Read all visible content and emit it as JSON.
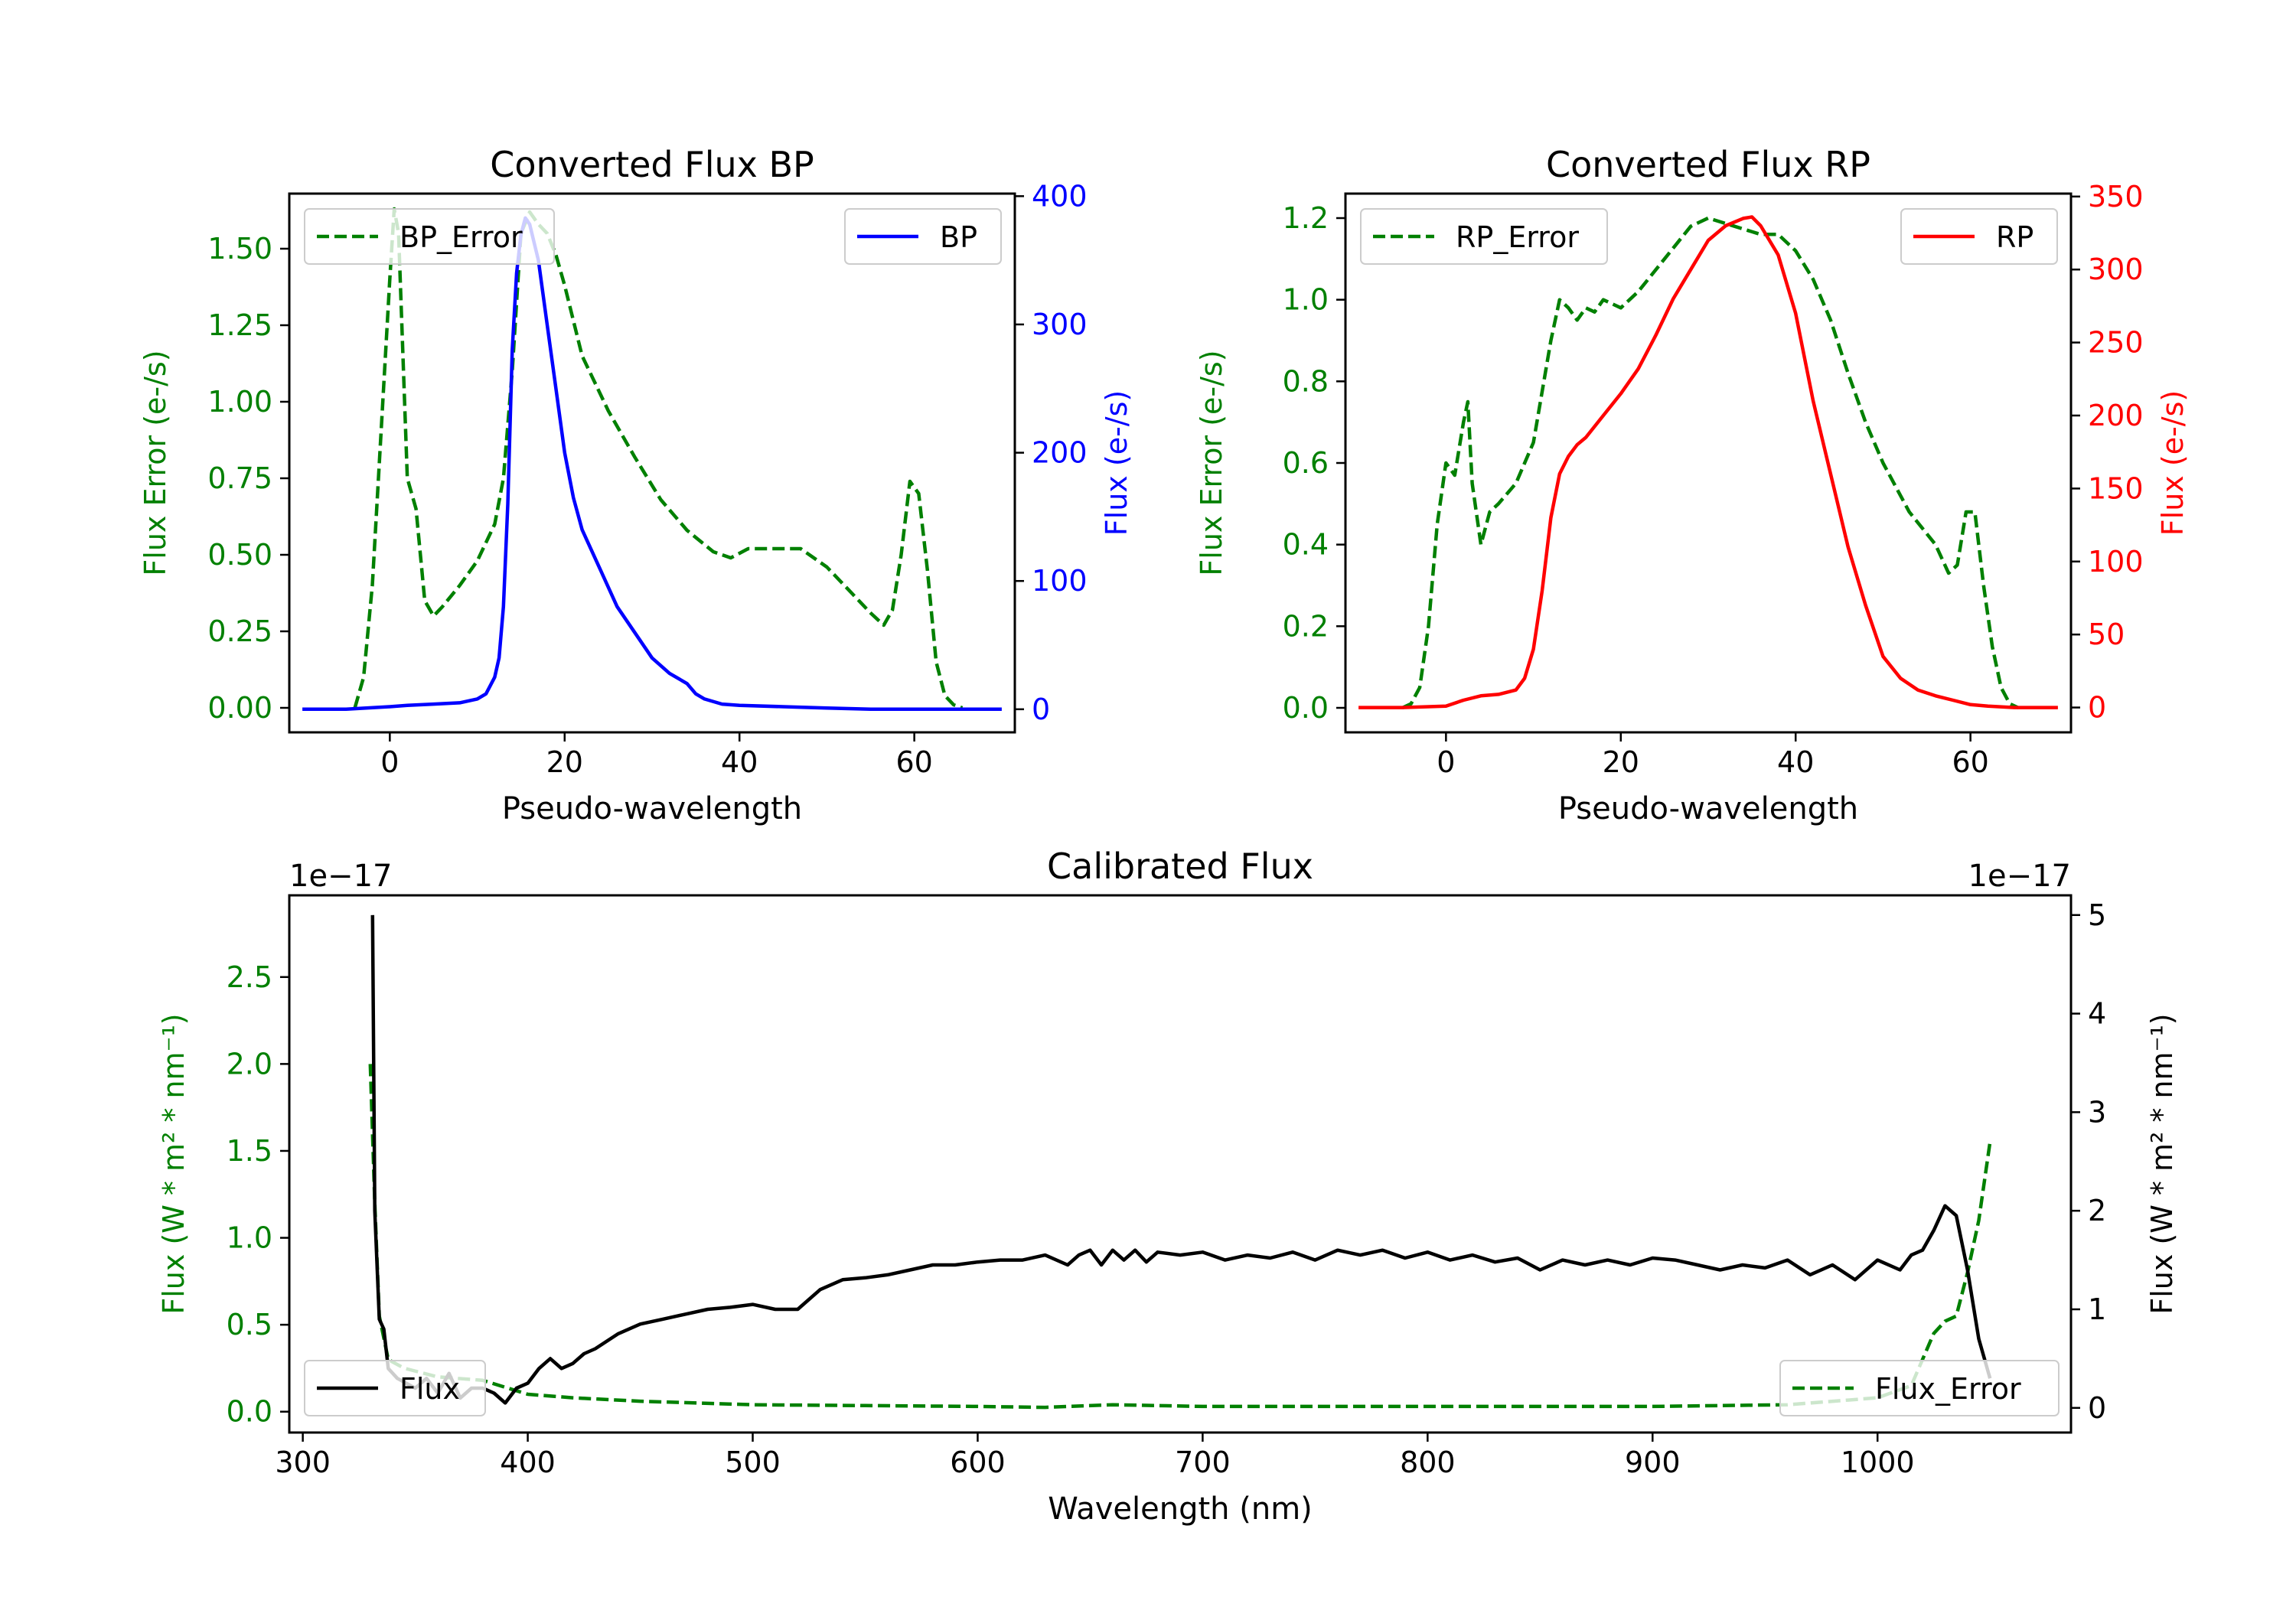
{
  "colors": {
    "green": "#008000",
    "blue": "#0000ff",
    "red": "#ff0000",
    "black": "#000000"
  },
  "chart_data": [
    {
      "type": "line",
      "title": "Converted Flux BP",
      "xlabel": "Pseudo-wavelength",
      "ylabel_left": "Flux Error (e-/s)",
      "ylabel_right": "Flux (e-/s)",
      "xlim": [
        -11.5,
        71.5
      ],
      "ylim_left": [
        -0.08,
        1.68
      ],
      "ylim_right": [
        -18,
        402
      ],
      "xticks": [
        0,
        20,
        40,
        60
      ],
      "yticks_left": [
        "0.00",
        "0.25",
        "0.50",
        "0.75",
        "1.00",
        "1.25",
        "1.50"
      ],
      "yticks_right": [
        "0",
        "100",
        "200",
        "300",
        "400"
      ],
      "legend_left": "BP_Error",
      "legend_right": "BP",
      "series": [
        {
          "name": "BP_Error",
          "axis": "left",
          "style": "dashed",
          "color": "#008000",
          "x": [
            -4,
            -3,
            -2,
            -1,
            0,
            0.5,
            1,
            2,
            3,
            4,
            5,
            6,
            8,
            10,
            12,
            13,
            14,
            15,
            16,
            17,
            18,
            19,
            20,
            22,
            25,
            28,
            31,
            34,
            37,
            39,
            41,
            44,
            47,
            50,
            53,
            55,
            56.5,
            57.5,
            58.5,
            59.5,
            60.5,
            61.5,
            62.5,
            63.5,
            64.5,
            65.5
          ],
          "values": [
            0.0,
            0.1,
            0.4,
            0.9,
            1.4,
            1.63,
            1.55,
            0.75,
            0.65,
            0.35,
            0.3,
            0.33,
            0.4,
            0.48,
            0.6,
            0.75,
            1.1,
            1.55,
            1.62,
            1.58,
            1.55,
            1.48,
            1.38,
            1.15,
            0.97,
            0.82,
            0.68,
            0.58,
            0.51,
            0.49,
            0.52,
            0.52,
            0.52,
            0.46,
            0.37,
            0.31,
            0.27,
            0.32,
            0.5,
            0.74,
            0.7,
            0.45,
            0.15,
            0.04,
            0.01,
            0.0
          ]
        },
        {
          "name": "BP",
          "axis": "right",
          "style": "solid",
          "color": "#0000ff",
          "x": [
            -10,
            -5,
            0,
            2,
            5,
            8,
            10,
            11,
            12,
            12.5,
            13,
            13.5,
            14,
            14.5,
            15,
            15.5,
            16,
            17,
            18,
            19,
            20,
            21,
            22,
            24,
            26,
            28,
            30,
            32,
            34,
            35,
            36,
            38,
            40,
            45,
            50,
            55,
            60,
            65,
            70
          ],
          "values": [
            0,
            0,
            2,
            3,
            4,
            5,
            8,
            12,
            25,
            40,
            80,
            160,
            280,
            340,
            370,
            383,
            378,
            350,
            300,
            250,
            200,
            165,
            140,
            110,
            80,
            60,
            40,
            28,
            20,
            12,
            8,
            4,
            3,
            2,
            1,
            0,
            0,
            0,
            0
          ]
        }
      ]
    },
    {
      "type": "line",
      "title": "Converted Flux RP",
      "xlabel": "Pseudo-wavelength",
      "ylabel_left": "Flux Error (e-/s)",
      "ylabel_right": "Flux (e-/s)",
      "xlim": [
        -11.5,
        71.5
      ],
      "ylim_left": [
        -0.06,
        1.26
      ],
      "ylim_right": [
        -17,
        352
      ],
      "xticks": [
        0,
        20,
        40,
        60
      ],
      "yticks_left": [
        "0.0",
        "0.2",
        "0.4",
        "0.6",
        "0.8",
        "1.0",
        "1.2"
      ],
      "yticks_right": [
        "0",
        "50",
        "100",
        "150",
        "200",
        "250",
        "300",
        "350"
      ],
      "legend_left": "RP_Error",
      "legend_right": "RP",
      "series": [
        {
          "name": "RP_Error",
          "axis": "left",
          "style": "dashed",
          "color": "#008000",
          "x": [
            -5,
            -4,
            -3,
            -2,
            -1,
            0,
            1,
            2,
            2.5,
            3,
            4,
            5,
            6,
            8,
            10,
            12,
            13,
            14,
            15,
            16,
            17,
            18,
            19,
            20,
            22,
            25,
            28,
            30,
            33,
            36,
            38,
            40,
            42,
            44,
            46,
            48,
            50,
            53,
            56,
            57.5,
            58.5,
            59.5,
            60.5,
            61.5,
            62.5,
            63.5,
            64.5,
            65.5
          ],
          "values": [
            0.0,
            0.01,
            0.05,
            0.2,
            0.45,
            0.6,
            0.57,
            0.7,
            0.75,
            0.55,
            0.4,
            0.48,
            0.5,
            0.55,
            0.65,
            0.9,
            1.0,
            0.98,
            0.95,
            0.98,
            0.97,
            1.0,
            0.99,
            0.98,
            1.02,
            1.1,
            1.18,
            1.2,
            1.18,
            1.16,
            1.16,
            1.12,
            1.05,
            0.95,
            0.82,
            0.7,
            0.6,
            0.48,
            0.4,
            0.33,
            0.35,
            0.48,
            0.48,
            0.3,
            0.15,
            0.05,
            0.01,
            0.0
          ]
        },
        {
          "name": "RP",
          "axis": "right",
          "style": "solid",
          "color": "#ff0000",
          "x": [
            -10,
            -5,
            0,
            2,
            4,
            6,
            8,
            9,
            10,
            11,
            12,
            13,
            14,
            15,
            16,
            18,
            20,
            22,
            24,
            26,
            28,
            30,
            32,
            34,
            35,
            36,
            38,
            40,
            42,
            44,
            46,
            48,
            50,
            52,
            54,
            56,
            58,
            60,
            62,
            65,
            70
          ],
          "values": [
            0,
            0,
            1,
            5,
            8,
            9,
            12,
            20,
            40,
            80,
            130,
            160,
            172,
            180,
            185,
            200,
            215,
            232,
            255,
            280,
            300,
            320,
            330,
            335,
            336,
            330,
            310,
            270,
            210,
            160,
            110,
            70,
            35,
            20,
            12,
            8,
            5,
            2,
            1,
            0,
            0
          ]
        }
      ]
    },
    {
      "type": "line",
      "title": "Calibrated Flux",
      "xlabel": "Wavelength (nm)",
      "ylabel_left": "Flux (W * m² * nm⁻¹)",
      "ylabel_right": "Flux (W * m² * nm⁻¹)",
      "offset_left": "1e−17",
      "offset_right": "1e−17",
      "xlim": [
        294,
        1086
      ],
      "ylim_left": [
        -0.12,
        2.97
      ],
      "ylim_right": [
        -0.25,
        5.2
      ],
      "xticks": [
        300,
        400,
        500,
        600,
        700,
        800,
        900,
        1000
      ],
      "yticks_left": [
        "0.0",
        "0.5",
        "1.0",
        "1.5",
        "2.0",
        "2.5"
      ],
      "yticks_right": [
        "0",
        "1",
        "2",
        "3",
        "4",
        "5"
      ],
      "legend_left": "Flux",
      "legend_right": "Flux_Error",
      "series": [
        {
          "name": "Flux_Error",
          "axis": "left",
          "style": "dashed",
          "color": "#008000",
          "x": [
            330,
            332,
            334,
            338,
            345,
            360,
            380,
            400,
            420,
            450,
            500,
            550,
            600,
            630,
            640,
            660,
            700,
            800,
            900,
            960,
            1000,
            1015,
            1020,
            1025,
            1030,
            1035,
            1040,
            1045,
            1050
          ],
          "values": [
            2.0,
            1.2,
            0.55,
            0.3,
            0.25,
            0.2,
            0.18,
            0.1,
            0.08,
            0.06,
            0.04,
            0.035,
            0.03,
            0.025,
            0.03,
            0.04,
            0.03,
            0.03,
            0.03,
            0.04,
            0.08,
            0.15,
            0.3,
            0.45,
            0.52,
            0.55,
            0.8,
            1.1,
            1.55
          ]
        },
        {
          "name": "Flux",
          "axis": "right",
          "style": "solid",
          "color": "#000000",
          "x": [
            331,
            332,
            334,
            336,
            338,
            342,
            346,
            350,
            355,
            360,
            365,
            370,
            375,
            380,
            385,
            390,
            395,
            400,
            405,
            410,
            415,
            420,
            425,
            430,
            440,
            450,
            460,
            470,
            480,
            490,
            500,
            510,
            520,
            530,
            540,
            550,
            560,
            570,
            580,
            590,
            600,
            610,
            620,
            630,
            640,
            645,
            650,
            655,
            660,
            665,
            670,
            675,
            680,
            690,
            700,
            710,
            720,
            730,
            740,
            750,
            760,
            770,
            780,
            790,
            800,
            810,
            820,
            830,
            840,
            850,
            860,
            870,
            880,
            890,
            900,
            910,
            920,
            930,
            940,
            950,
            960,
            970,
            980,
            990,
            1000,
            1010,
            1015,
            1020,
            1025,
            1030,
            1035,
            1040,
            1045,
            1050
          ],
          "values": [
            5.0,
            2.0,
            0.9,
            0.8,
            0.4,
            0.3,
            0.25,
            0.2,
            0.3,
            0.15,
            0.35,
            0.1,
            0.2,
            0.2,
            0.15,
            0.05,
            0.2,
            0.25,
            0.4,
            0.5,
            0.4,
            0.45,
            0.55,
            0.6,
            0.75,
            0.85,
            0.9,
            0.95,
            1.0,
            1.02,
            1.05,
            1.0,
            1.0,
            1.2,
            1.3,
            1.32,
            1.35,
            1.4,
            1.45,
            1.45,
            1.48,
            1.5,
            1.5,
            1.55,
            1.45,
            1.55,
            1.6,
            1.45,
            1.6,
            1.5,
            1.6,
            1.48,
            1.58,
            1.55,
            1.58,
            1.5,
            1.55,
            1.52,
            1.58,
            1.5,
            1.6,
            1.55,
            1.6,
            1.52,
            1.58,
            1.5,
            1.55,
            1.48,
            1.52,
            1.4,
            1.5,
            1.45,
            1.5,
            1.45,
            1.52,
            1.5,
            1.45,
            1.4,
            1.45,
            1.42,
            1.5,
            1.35,
            1.45,
            1.3,
            1.5,
            1.4,
            1.55,
            1.6,
            1.8,
            2.05,
            1.95,
            1.4,
            0.7,
            0.3
          ]
        }
      ]
    }
  ]
}
